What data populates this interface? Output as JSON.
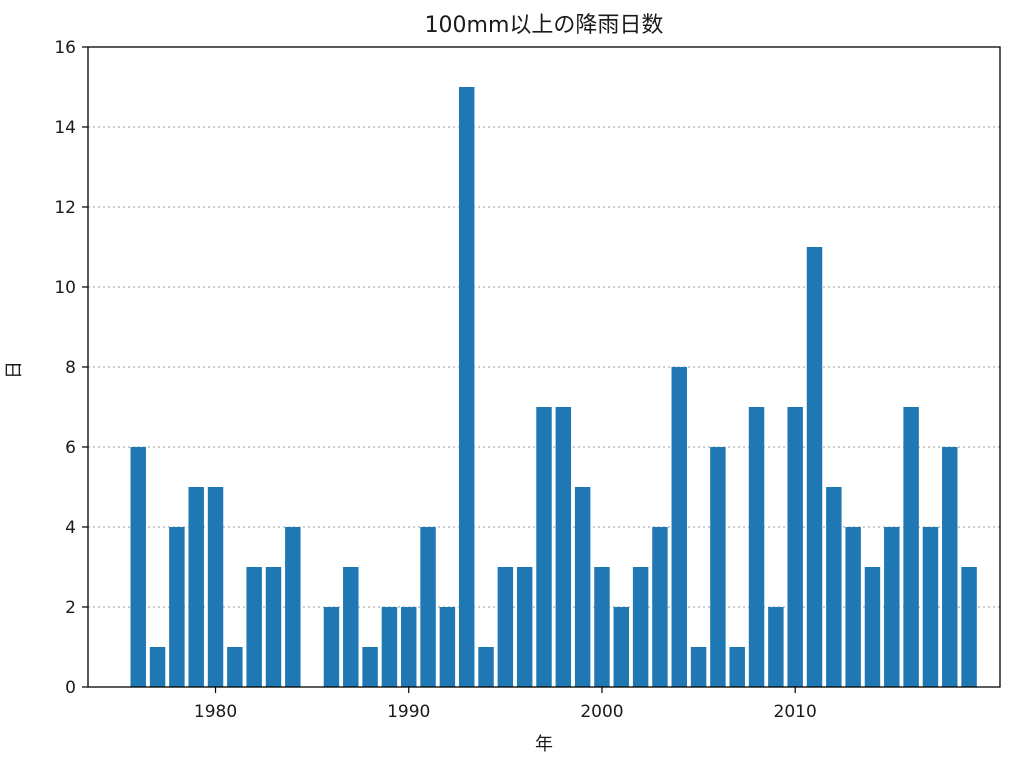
{
  "chart_data": {
    "type": "bar",
    "title": "100mm以上の降雨日数",
    "xlabel": "年",
    "ylabel": "日",
    "xlim": [
      1973.4,
      2020.6
    ],
    "ylim": [
      0,
      16
    ],
    "x_ticks": [
      1980,
      1990,
      2000,
      2010
    ],
    "y_ticks": [
      0,
      2,
      4,
      6,
      8,
      10,
      12,
      14,
      16
    ],
    "grid": "y-dotted",
    "bar_color": "#1f77b4",
    "x": [
      1976,
      1977,
      1978,
      1979,
      1980,
      1981,
      1982,
      1983,
      1984,
      1985,
      1986,
      1987,
      1988,
      1989,
      1990,
      1991,
      1992,
      1993,
      1994,
      1995,
      1996,
      1997,
      1998,
      1999,
      2000,
      2001,
      2002,
      2003,
      2004,
      2005,
      2006,
      2007,
      2008,
      2009,
      2010,
      2011,
      2012,
      2013,
      2014,
      2015,
      2016,
      2017,
      2018,
      2019
    ],
    "values": [
      6,
      1,
      4,
      5,
      5,
      1,
      3,
      3,
      4,
      0,
      2,
      3,
      1,
      2,
      2,
      4,
      2,
      15,
      1,
      3,
      3,
      7,
      7,
      5,
      3,
      2,
      3,
      4,
      8,
      1,
      6,
      1,
      7,
      2,
      7,
      11,
      5,
      4,
      3,
      4,
      7,
      4,
      6,
      3
    ]
  }
}
